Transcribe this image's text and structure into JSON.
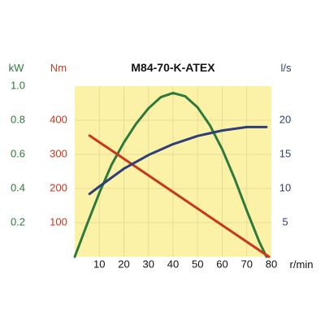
{
  "chart_data": {
    "type": "line",
    "title": "M84-70-K-ATEX",
    "xlabel": "r/min",
    "xlim": [
      0,
      80
    ],
    "x_ticks": [
      10,
      20,
      30,
      40,
      50,
      60,
      70,
      80
    ],
    "grid": true,
    "axes": {
      "kw": {
        "label": "kW",
        "color": "#2e7a3c",
        "lim": [
          0,
          1.0
        ],
        "ticks": [
          "1.0",
          "0.8",
          "0.6",
          "0.4",
          "0.2"
        ],
        "tick_values": [
          1.0,
          0.8,
          0.6,
          0.4,
          0.2
        ]
      },
      "nm": {
        "label": "Nm",
        "color": "#c8361e",
        "lim": [
          0,
          500
        ],
        "ticks": [
          "400",
          "300",
          "200",
          "100"
        ],
        "tick_values": [
          400,
          300,
          200,
          100
        ]
      },
      "ls": {
        "label": "l/s",
        "color": "#2d3e78",
        "lim": [
          0,
          25
        ],
        "ticks": [
          "20",
          "15",
          "10",
          "5"
        ],
        "tick_values": [
          20,
          15,
          10,
          5
        ]
      }
    },
    "series": [
      {
        "axis": "kw",
        "color": "#2e7a3c",
        "x": [
          0,
          5,
          10,
          15,
          20,
          25,
          30,
          35,
          40,
          45,
          50,
          55,
          60,
          65,
          70,
          75,
          78
        ],
        "y": [
          0.0,
          0.19,
          0.375,
          0.54,
          0.67,
          0.78,
          0.87,
          0.935,
          0.96,
          0.94,
          0.875,
          0.77,
          0.63,
          0.46,
          0.27,
          0.09,
          0.0
        ]
      },
      {
        "axis": "nm",
        "color": "#c8361e",
        "x": [
          6,
          79
        ],
        "y": [
          355,
          0
        ]
      },
      {
        "axis": "ls",
        "color": "#2d3e78",
        "x": [
          6,
          10,
          20,
          30,
          40,
          50,
          60,
          70,
          78
        ],
        "y": [
          9.2,
          10.3,
          12.9,
          14.9,
          16.5,
          17.7,
          18.5,
          19.0,
          19.0
        ]
      }
    ]
  }
}
